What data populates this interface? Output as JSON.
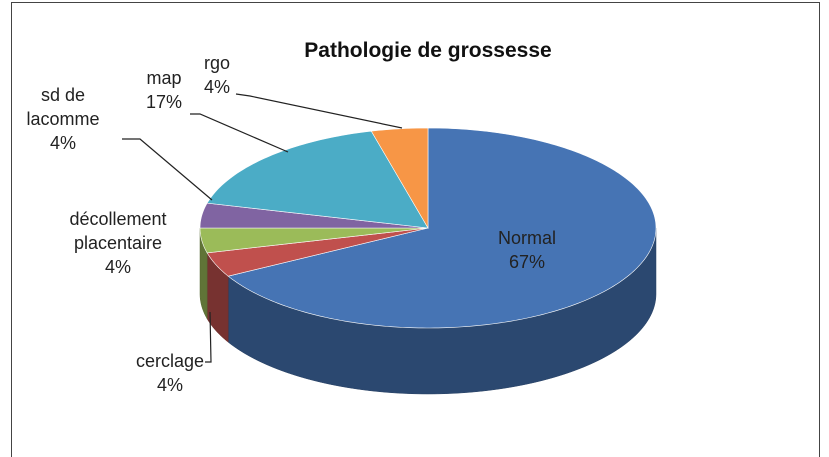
{
  "chart_data": {
    "type": "pie",
    "title": "Pathologie de grossesse",
    "categories": [
      "Normal",
      "cerclage",
      "décollement placentaire",
      "sd de lacomme",
      "map",
      "rgo"
    ],
    "values": [
      67,
      4,
      4,
      4,
      17,
      4
    ],
    "value_labels": [
      "67%",
      "4%",
      "4%",
      "4%",
      "17%",
      "4%"
    ],
    "colors": [
      "#4674b4",
      "#c0504d",
      "#9bbb59",
      "#8064a2",
      "#4bacc6",
      "#f79646"
    ]
  }
}
